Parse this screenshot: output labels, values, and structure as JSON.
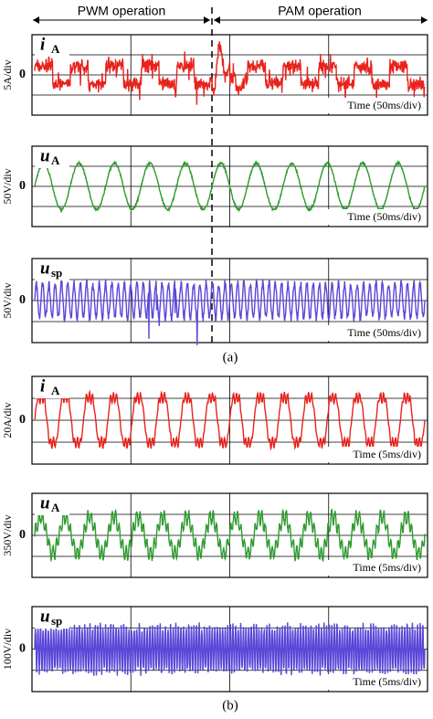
{
  "header": {
    "left": "PWM operation",
    "right": "PAM operation"
  },
  "figures": [
    {
      "caption": "(a)",
      "panels": [
        {
          "symbol": "i",
          "subscript": "A",
          "zero": "0",
          "scale": "5A/div",
          "time": "Time (50ms/div)"
        },
        {
          "symbol": "u",
          "subscript": "A",
          "zero": "0",
          "scale": "50V/div",
          "time": "Time (50ms/div)"
        },
        {
          "symbol": "u",
          "subscript": "sp",
          "zero": "0",
          "scale": "50V/div",
          "time": "Time (50ms/div)"
        }
      ]
    },
    {
      "caption": "(b)",
      "panels": [
        {
          "symbol": "i",
          "subscript": "A",
          "zero": "0",
          "scale": "20A/div",
          "time": "Time (5ms/div)"
        },
        {
          "symbol": "u",
          "subscript": "A",
          "zero": "0",
          "scale": "350V/div",
          "time": "Time (5ms/div)"
        },
        {
          "symbol": "u",
          "subscript": "sp",
          "zero": "0",
          "scale": "100V/div",
          "time": "Time (5ms/div)"
        }
      ]
    }
  ]
}
